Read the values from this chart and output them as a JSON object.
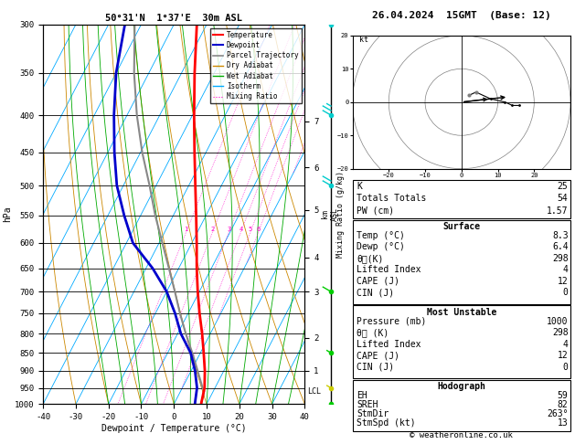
{
  "title_left": "50°31'N  1°37'E  30m ASL",
  "title_right": "26.04.2024  15GMT  (Base: 12)",
  "xlabel": "Dewpoint / Temperature (°C)",
  "ylabel_left": "hPa",
  "x_min": -40,
  "x_max": 40,
  "p_levels": [
    300,
    350,
    400,
    450,
    500,
    550,
    600,
    650,
    700,
    750,
    800,
    850,
    900,
    950,
    1000
  ],
  "p_tick_labels": [
    "300",
    "350",
    "400",
    "450",
    "500",
    "550",
    "600",
    "650",
    "700",
    "750",
    "800",
    "850",
    "900",
    "950",
    "1000"
  ],
  "km_labels": [
    "7",
    "6",
    "5",
    "4",
    "3",
    "2",
    "1",
    "LCL"
  ],
  "km_pressures": [
    408,
    472,
    540,
    628,
    700,
    810,
    900,
    960
  ],
  "temp_profile_p": [
    1000,
    950,
    900,
    850,
    800,
    750,
    700,
    650,
    600,
    550,
    500,
    450,
    400,
    350,
    300
  ],
  "temp_profile_t": [
    8.3,
    6.8,
    4.2,
    1.0,
    -2.5,
    -6.5,
    -10.5,
    -14.5,
    -18.5,
    -23.0,
    -28.0,
    -33.5,
    -39.5,
    -46.0,
    -53.0
  ],
  "dewp_profile_p": [
    1000,
    950,
    900,
    850,
    800,
    750,
    700,
    650,
    600,
    550,
    500,
    450,
    400,
    350,
    300
  ],
  "dewp_profile_t": [
    6.4,
    4.5,
    1.2,
    -3.0,
    -9.0,
    -14.0,
    -20.0,
    -28.0,
    -38.0,
    -45.0,
    -52.0,
    -58.0,
    -64.0,
    -70.0,
    -75.0
  ],
  "parcel_profile_p": [
    1000,
    960,
    950,
    900,
    850,
    800,
    750,
    700,
    650,
    600,
    550,
    500,
    450,
    400,
    350,
    300
  ],
  "parcel_profile_t": [
    8.3,
    7.2,
    6.2,
    2.0,
    -2.5,
    -7.5,
    -12.5,
    -17.5,
    -23.0,
    -29.0,
    -35.5,
    -42.0,
    -49.5,
    -57.0,
    -64.5,
    -72.0
  ],
  "lcl_pressure": 960,
  "background_color": "#ffffff",
  "temp_color": "#ff0000",
  "dewp_color": "#0000cc",
  "parcel_color": "#888888",
  "dry_adiabat_color": "#cc8800",
  "wet_adiabat_color": "#00aa00",
  "isotherm_color": "#00aaff",
  "mixing_ratio_color": "#ff00cc",
  "grid_color": "#000000",
  "info_K": 25,
  "info_TT": 54,
  "info_PW": "1.57",
  "surf_temp": "8.3",
  "surf_dewp": "6.4",
  "surf_theta_e": "298",
  "surf_li": "4",
  "surf_cape": "12",
  "surf_cin": "0",
  "mu_pressure": "1000",
  "mu_theta_e": "298",
  "mu_li": "4",
  "mu_cape": "12",
  "mu_cin": "0",
  "hodo_EH": "59",
  "hodo_SREH": "82",
  "hodo_StmDir": "263°",
  "hodo_StmSpd": "13",
  "copyright": "© weatheronline.co.uk",
  "wind_barb_cyan": "#00cccc",
  "wind_barb_green": "#00cc00",
  "wind_barb_yellow": "#cccc00"
}
